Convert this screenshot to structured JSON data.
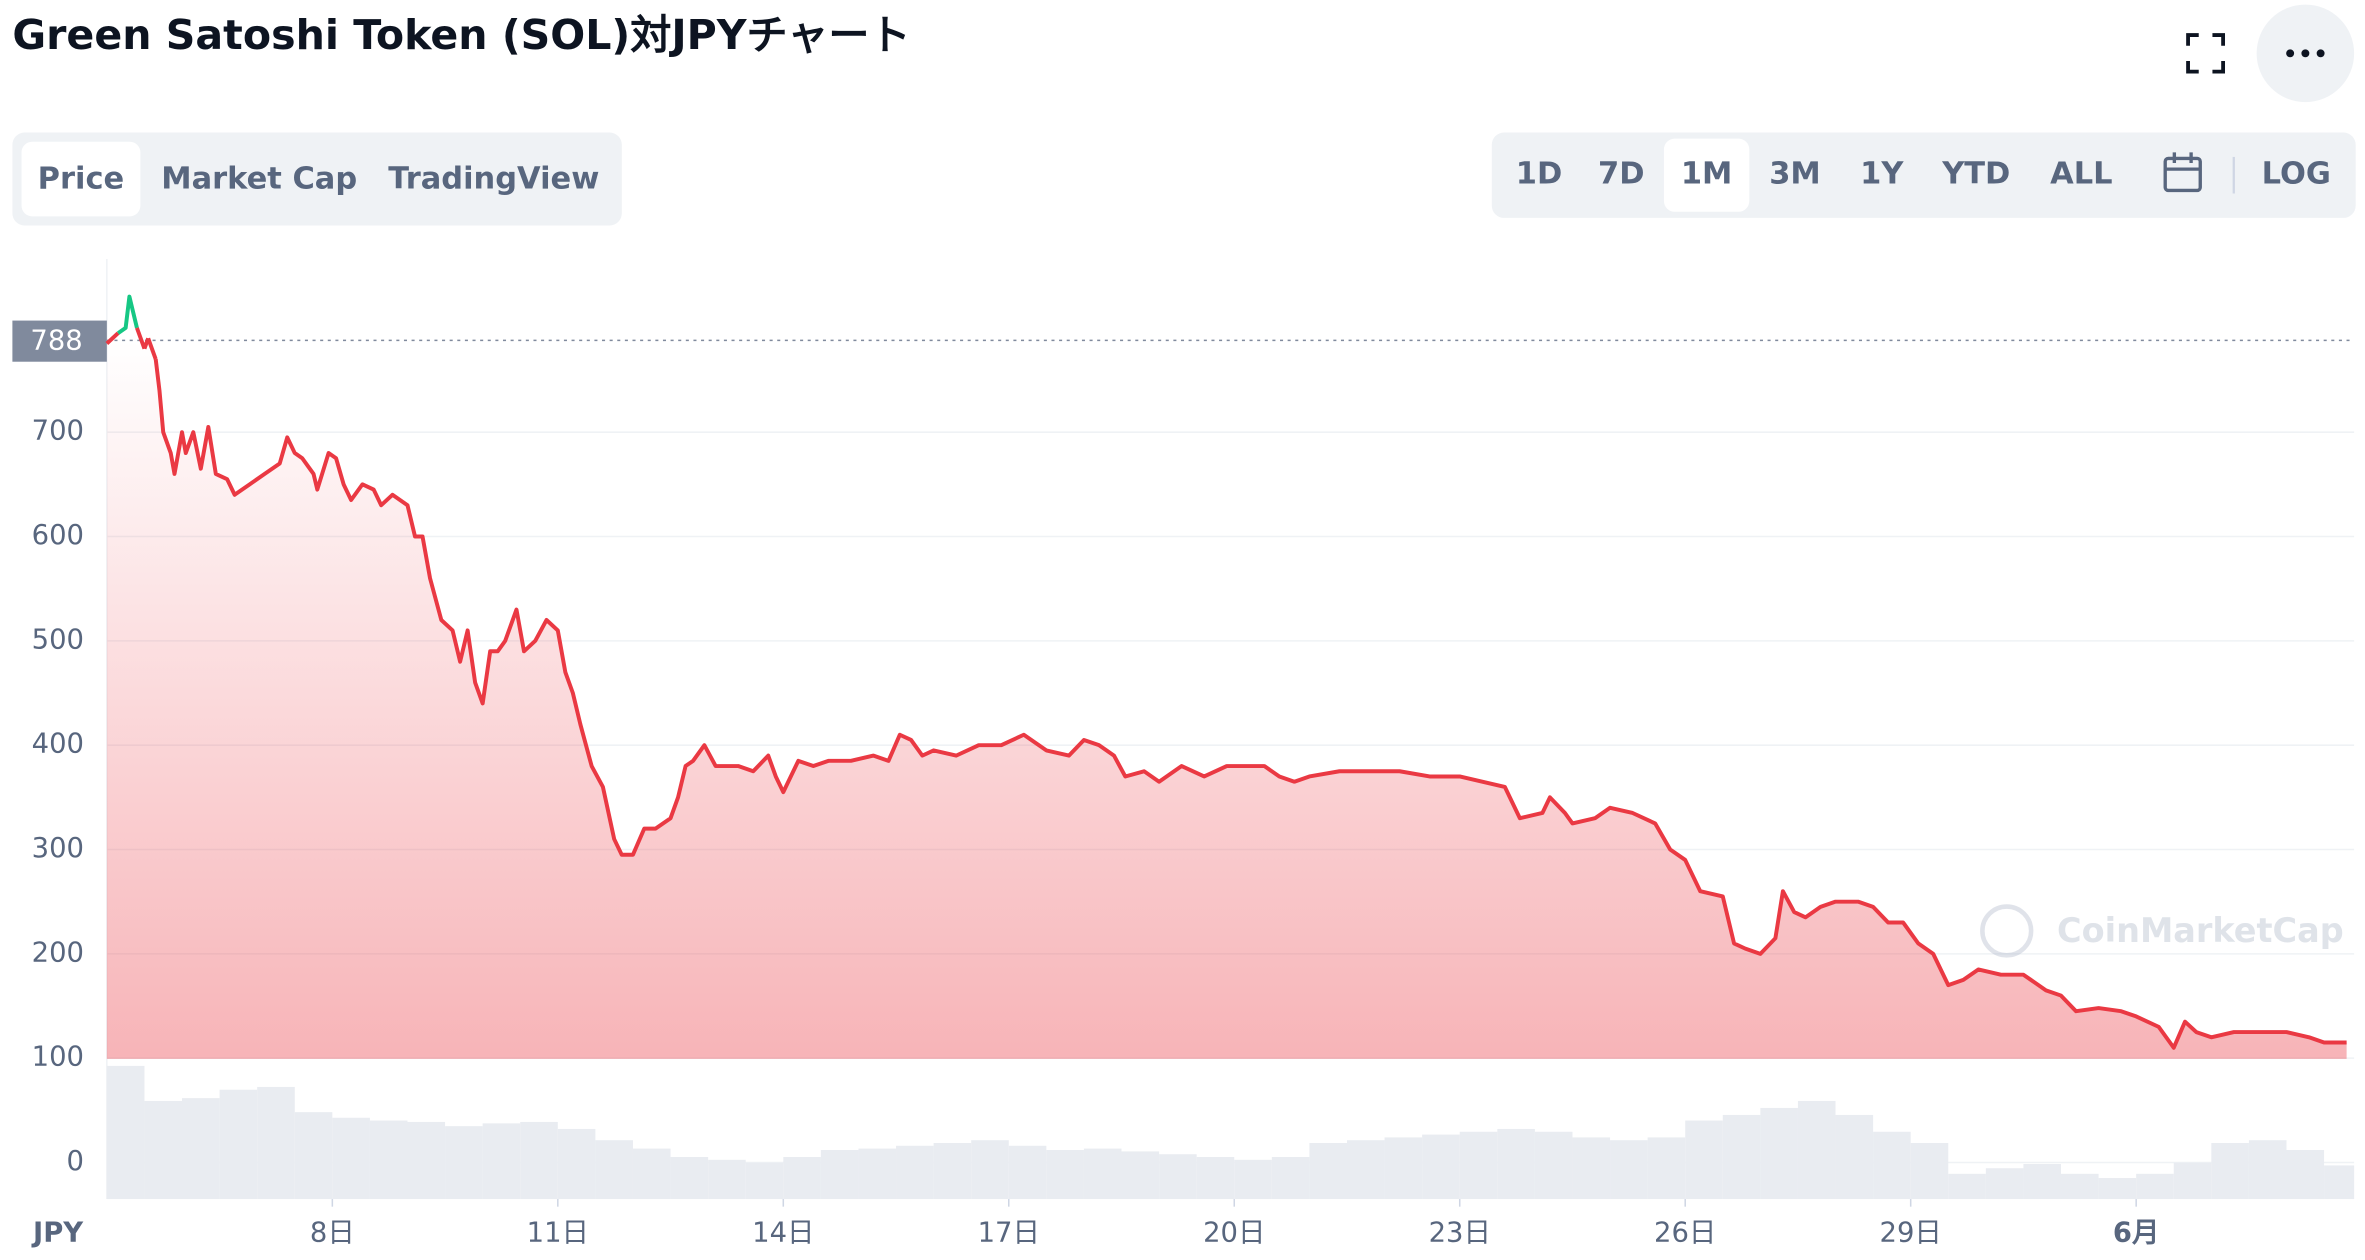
{
  "header": {
    "title": "Green Satoshi Token (SOL)対JPYチャート"
  },
  "tabs": [
    "Price",
    "Market Cap",
    "TradingView"
  ],
  "active_tab": 0,
  "ranges": [
    "1D",
    "7D",
    "1M",
    "3M",
    "1Y",
    "YTD",
    "ALL"
  ],
  "active_range": 2,
  "log_button": "LOG",
  "watermark": "CoinMarketCap",
  "chart_data": {
    "type": "line",
    "currency_label": "JPY",
    "reference_price": 788,
    "color": "#ea3943",
    "above_color": "#16c784",
    "x": [
      5.0,
      5.15,
      5.25,
      5.3,
      5.4,
      5.5,
      5.55,
      5.65,
      5.7,
      5.75,
      5.85,
      5.9,
      6.0,
      6.05,
      6.15,
      6.25,
      6.35,
      6.45,
      6.6,
      6.7,
      6.9,
      7.1,
      7.3,
      7.4,
      7.5,
      7.6,
      7.75,
      7.8,
      7.95,
      8.05,
      8.15,
      8.25,
      8.4,
      8.55,
      8.65,
      8.8,
      9.0,
      9.1,
      9.2,
      9.3,
      9.45,
      9.6,
      9.7,
      9.8,
      9.9,
      10.0,
      10.1,
      10.2,
      10.3,
      10.45,
      10.55,
      10.7,
      10.85,
      11.0,
      11.1,
      11.2,
      11.3,
      11.45,
      11.6,
      11.75,
      11.85,
      12.0,
      12.15,
      12.3,
      12.5,
      12.6,
      12.7,
      12.8,
      12.95,
      13.1,
      13.4,
      13.6,
      13.8,
      13.9,
      14.0,
      14.2,
      14.4,
      14.6,
      14.9,
      15.2,
      15.4,
      15.55,
      15.7,
      15.85,
      16.0,
      16.3,
      16.6,
      16.9,
      17.2,
      17.5,
      17.8,
      18.0,
      18.2,
      18.4,
      18.55,
      18.8,
      19.0,
      19.3,
      19.6,
      19.9,
      20.2,
      20.4,
      20.6,
      20.8,
      21.0,
      21.4,
      21.8,
      22.2,
      22.6,
      23.0,
      23.3,
      23.6,
      23.8,
      24.1,
      24.2,
      24.4,
      24.5,
      24.8,
      25.0,
      25.3,
      25.6,
      25.8,
      26.0,
      26.2,
      26.5,
      26.65,
      26.8,
      27.0,
      27.2,
      27.3,
      27.45,
      27.6,
      27.8,
      28.0,
      28.3,
      28.5,
      28.7,
      28.9,
      29.1,
      29.3,
      29.5,
      29.7,
      29.9,
      30.2,
      30.5,
      30.8,
      31.0,
      31.2,
      31.5,
      31.8,
      32.0,
      32.3,
      32.5,
      32.65,
      32.8,
      33.0,
      33.3,
      33.6,
      34.0,
      34.3,
      34.5,
      34.8
    ],
    "values": [
      785,
      795,
      800,
      830,
      800,
      780,
      790,
      770,
      740,
      700,
      680,
      660,
      700,
      680,
      700,
      665,
      705,
      660,
      655,
      640,
      650,
      660,
      670,
      695,
      680,
      675,
      660,
      645,
      680,
      675,
      650,
      635,
      650,
      645,
      630,
      640,
      630,
      600,
      600,
      560,
      520,
      510,
      480,
      510,
      460,
      440,
      490,
      490,
      500,
      530,
      490,
      500,
      520,
      510,
      470,
      450,
      420,
      380,
      360,
      310,
      295,
      295,
      320,
      320,
      330,
      350,
      380,
      385,
      400,
      380,
      380,
      375,
      390,
      370,
      355,
      385,
      380,
      385,
      385,
      390,
      385,
      410,
      405,
      390,
      395,
      390,
      400,
      400,
      410,
      395,
      390,
      405,
      400,
      390,
      370,
      375,
      365,
      380,
      370,
      380,
      380,
      380,
      370,
      365,
      370,
      375,
      375,
      375,
      370,
      370,
      365,
      360,
      330,
      335,
      350,
      335,
      325,
      330,
      340,
      335,
      325,
      300,
      290,
      260,
      255,
      210,
      205,
      200,
      215,
      260,
      240,
      235,
      245,
      250,
      250,
      245,
      230,
      230,
      210,
      200,
      170,
      175,
      185,
      180,
      180,
      165,
      160,
      145,
      148,
      145,
      140,
      130,
      110,
      135,
      125,
      120,
      125,
      125,
      125,
      120,
      115,
      115
    ],
    "volume": {
      "axis": "y2",
      "color": "#e9ecf1",
      "x": [
        5.0,
        5.5,
        6.0,
        6.5,
        7.0,
        7.5,
        8.0,
        8.5,
        9.0,
        9.5,
        10.0,
        10.5,
        11.0,
        11.5,
        12.0,
        12.5,
        13.0,
        13.5,
        14.0,
        14.5,
        15.0,
        15.5,
        16.0,
        16.5,
        17.0,
        17.5,
        18.0,
        18.5,
        19.0,
        19.5,
        20.0,
        20.5,
        21.0,
        21.5,
        22.0,
        22.5,
        23.0,
        23.5,
        24.0,
        24.5,
        25.0,
        25.5,
        26.0,
        26.5,
        27.0,
        27.5,
        28.0,
        28.5,
        29.0,
        29.5,
        30.0,
        30.5,
        31.0,
        31.5,
        32.0,
        32.5,
        33.0,
        33.5,
        34.0,
        34.5
      ],
      "values": [
        95,
        70,
        72,
        78,
        80,
        62,
        58,
        56,
        55,
        52,
        54,
        55,
        50,
        42,
        36,
        30,
        28,
        26,
        30,
        35,
        36,
        38,
        40,
        42,
        38,
        35,
        36,
        34,
        32,
        30,
        28,
        30,
        40,
        42,
        44,
        46,
        48,
        50,
        48,
        44,
        42,
        44,
        56,
        60,
        65,
        70,
        60,
        48,
        40,
        18,
        22,
        25,
        18,
        15,
        18,
        26,
        40,
        42,
        35,
        24
      ]
    },
    "xlim": [
      5,
      34.9
    ],
    "xticks": [
      {
        "value": 8,
        "label": "8日"
      },
      {
        "value": 11,
        "label": "11日"
      },
      {
        "value": 14,
        "label": "14日"
      },
      {
        "value": 17,
        "label": "17日"
      },
      {
        "value": 20,
        "label": "20日"
      },
      {
        "value": 23,
        "label": "23日"
      },
      {
        "value": 26,
        "label": "26日"
      },
      {
        "value": 29,
        "label": "29日"
      },
      {
        "value": 32,
        "label": "6月"
      }
    ],
    "ylim": [
      0,
      866
    ],
    "yticks": [
      0,
      100,
      200,
      300,
      400,
      500,
      600,
      700
    ],
    "y2lim": [
      0,
      100
    ],
    "grid": true
  }
}
